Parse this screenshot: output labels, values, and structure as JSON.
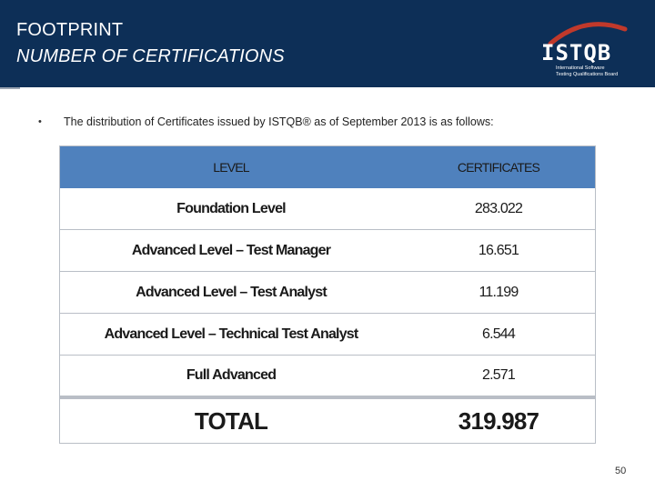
{
  "header": {
    "title_line1": "FOOTPRINT",
    "title_line2": "NUMBER OF CERTIFICATIONS",
    "logo": {
      "wordmark": "ISTQB",
      "tagline_line1": "International Software",
      "tagline_line2": "Testing Qualifications Board"
    }
  },
  "content": {
    "bullet": "•",
    "intro": "The distribution of Certificates issued by ISTQB® as of September 2013 is as follows:"
  },
  "table": {
    "headers": [
      "LEVEL",
      "CERTIFICATES"
    ],
    "rows": [
      {
        "level": "Foundation Level",
        "certificates": "283.022"
      },
      {
        "level": "Advanced Level – Test Manager",
        "certificates": "16.651"
      },
      {
        "level": "Advanced Level – Test Analyst",
        "certificates": "11.199"
      },
      {
        "level": "Advanced Level – Technical Test Analyst",
        "certificates": "6.544"
      },
      {
        "level": "Full Advanced",
        "certificates": "2.571"
      }
    ],
    "total": {
      "label": "TOTAL",
      "value": "319.987"
    }
  },
  "footer": {
    "page_number": "50"
  },
  "colors": {
    "header_bg": "#0d2f57",
    "table_header_bg": "#4f81bd",
    "logo_arc": "#c0392b"
  }
}
